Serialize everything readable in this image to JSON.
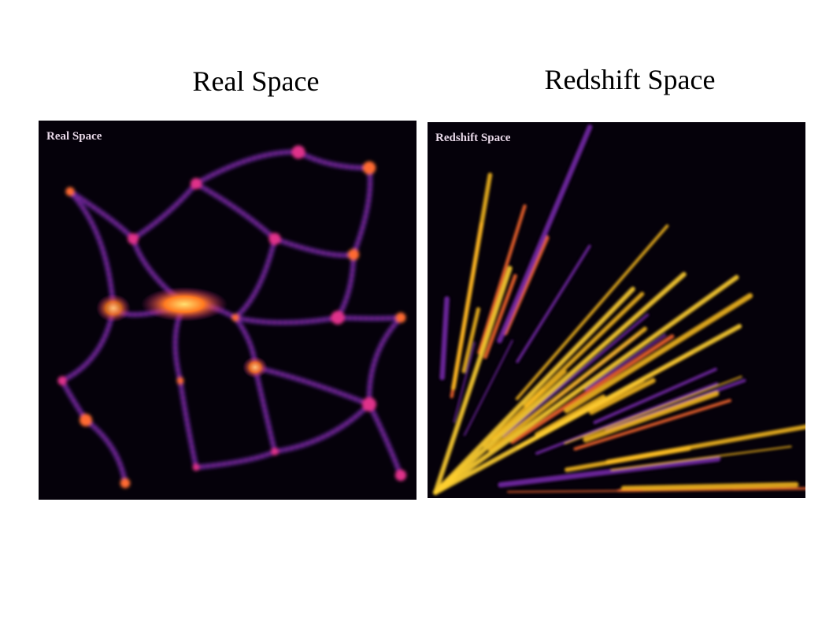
{
  "slide": {
    "panels": [
      {
        "heading": "Real Space",
        "image_label": "Real Space"
      },
      {
        "heading": "Redshift Space",
        "image_label": "Redshift Space"
      }
    ]
  }
}
